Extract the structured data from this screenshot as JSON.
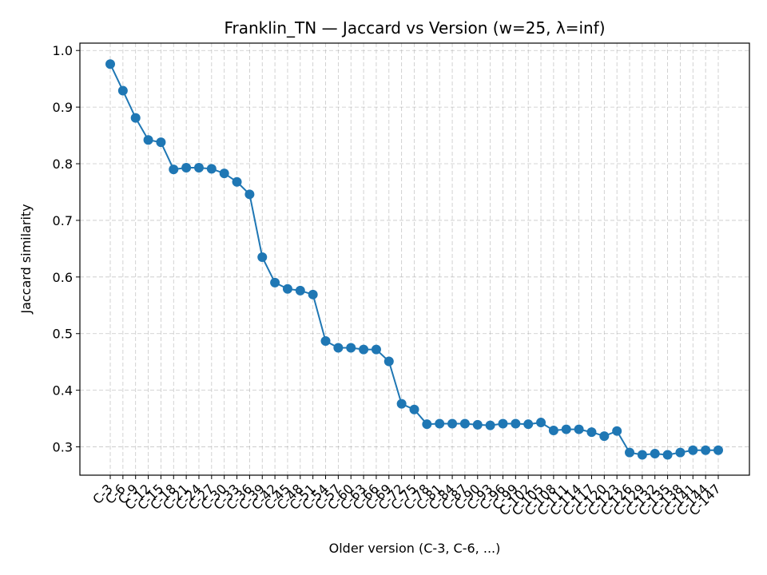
{
  "chart_data": {
    "type": "line",
    "title": "Franklin_TN — Jaccard vs Version (w=25, λ=inf)",
    "xlabel": "Older version (C-3, C-6, ...)",
    "ylabel": "Jaccard similarity",
    "ylim": [
      0.25,
      1.013
    ],
    "yticks": [
      0.3,
      0.4,
      0.5,
      0.6,
      0.7,
      0.8,
      0.9,
      1.0
    ],
    "ytick_labels": [
      "0.3",
      "0.4",
      "0.5",
      "0.6",
      "0.7",
      "0.8",
      "0.9",
      "1.0"
    ],
    "grid": true,
    "line_color": "#1f77b4",
    "categories": [
      "C-3",
      "C-6",
      "C-9",
      "C-12",
      "C-15",
      "C-18",
      "C-21",
      "C-24",
      "C-27",
      "C-30",
      "C-33",
      "C-36",
      "C-39",
      "C-42",
      "C-45",
      "C-48",
      "C-51",
      "C-54",
      "C-57",
      "C-60",
      "C-63",
      "C-66",
      "C-69",
      "C-72",
      "C-75",
      "C-78",
      "C-81",
      "C-84",
      "C-87",
      "C-90",
      "C-93",
      "C-96",
      "C-99",
      "C-102",
      "C-105",
      "C-108",
      "C-111",
      "C-114",
      "C-117",
      "C-120",
      "C-123",
      "C-126",
      "C-129",
      "C-132",
      "C-135",
      "C-138",
      "C-141",
      "C-144",
      "C-147"
    ],
    "values": [
      0.976,
      0.929,
      0.881,
      0.842,
      0.838,
      0.79,
      0.793,
      0.793,
      0.791,
      0.783,
      0.768,
      0.746,
      0.635,
      0.59,
      0.579,
      0.576,
      0.569,
      0.487,
      0.475,
      0.475,
      0.472,
      0.472,
      0.451,
      0.376,
      0.366,
      0.34,
      0.341,
      0.341,
      0.341,
      0.339,
      0.338,
      0.341,
      0.341,
      0.34,
      0.343,
      0.329,
      0.331,
      0.331,
      0.326,
      0.319,
      0.328,
      0.29,
      0.286,
      0.288,
      0.286,
      0.29,
      0.294,
      0.294,
      0.294
    ]
  }
}
